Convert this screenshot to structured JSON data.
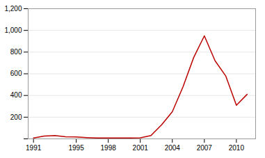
{
  "chart_data": {
    "type": "line",
    "x": [
      1991,
      1992,
      1993,
      1994,
      1995,
      1996,
      1997,
      1998,
      1999,
      2000,
      2001,
      2002,
      2003,
      2004,
      2005,
      2006,
      2007,
      2008,
      2009,
      2010,
      2011
    ],
    "values": [
      8,
      25,
      30,
      20,
      18,
      12,
      8,
      8,
      8,
      8,
      10,
      30,
      130,
      250,
      480,
      750,
      950,
      720,
      580,
      310,
      410
    ],
    "color": "#bb0000",
    "xlim": [
      1990.5,
      2011.8
    ],
    "xticks": [
      1991,
      1995,
      1998,
      2001,
      2004,
      2007,
      2010
    ],
    "ylim": [
      0,
      1200
    ],
    "yticks": [
      {
        "value": 0,
        "label": ""
      },
      200,
      400,
      600,
      800,
      {
        "value": 1000,
        "label": "1,000"
      },
      {
        "value": 1200,
        "label": "1,200"
      }
    ],
    "grid": "y"
  }
}
